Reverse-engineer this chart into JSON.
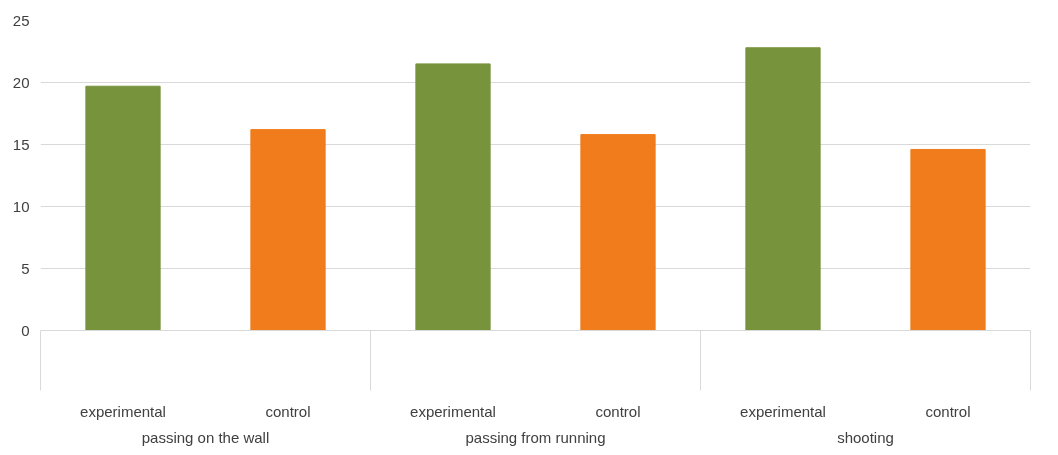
{
  "chart_data": {
    "type": "bar",
    "categories": [
      "experimental",
      "control",
      "experimental",
      "control",
      "experimental",
      "control"
    ],
    "values": [
      19.7,
      16.2,
      21.5,
      15.8,
      22.8,
      14.6
    ],
    "colors": [
      "#77933c",
      "#f07c1c",
      "#77933c",
      "#f07c1c",
      "#77933c",
      "#f07c1c"
    ],
    "annotations": [
      "passing on the wall",
      "passing from running",
      "shooting"
    ],
    "ylim": [
      0,
      25
    ],
    "yticks": [
      0,
      5,
      10,
      15,
      20,
      25
    ],
    "grid": "y"
  }
}
